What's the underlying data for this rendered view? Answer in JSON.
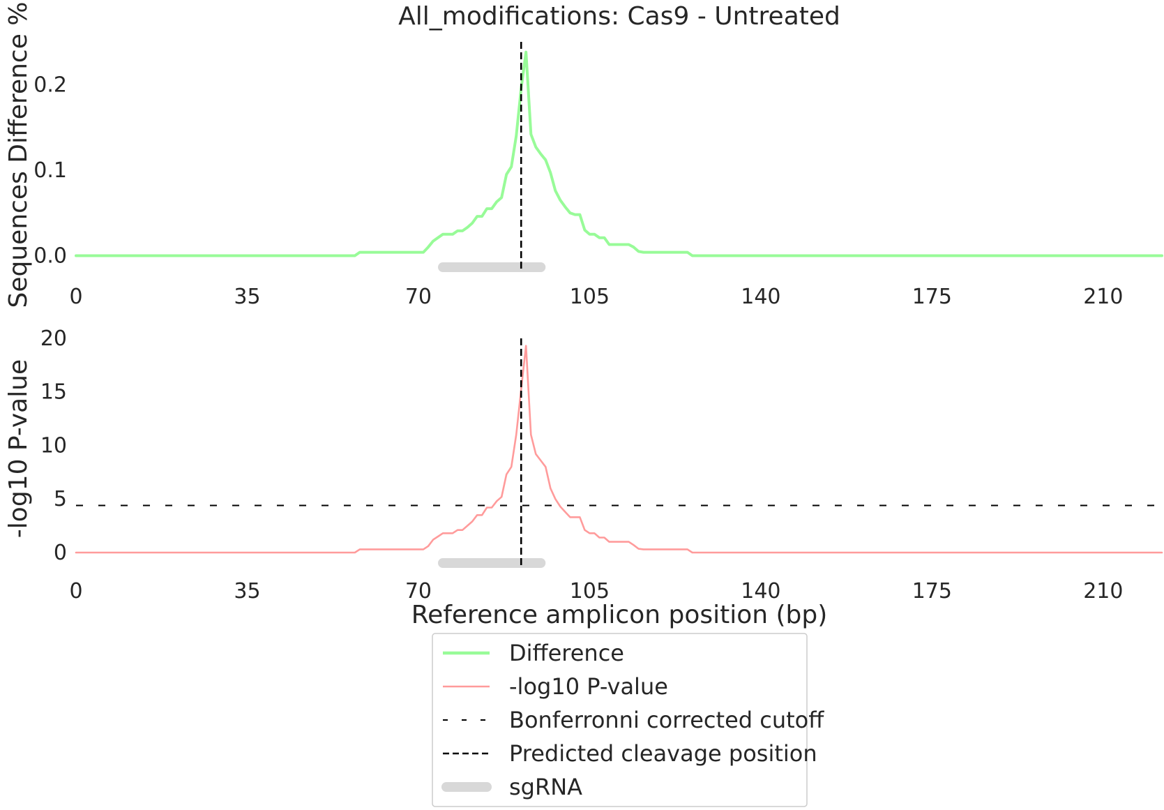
{
  "chart_data": [
    {
      "type": "line",
      "title": "All_modifications: Cas9 - Untreated",
      "ylabel": "Sequences Difference %",
      "xlabel": "",
      "xlim": [
        0,
        222
      ],
      "ylim": [
        -0.02,
        0.25
      ],
      "xticks": [
        0,
        35,
        70,
        105,
        140,
        175,
        210
      ],
      "xtick_labels": [
        "0",
        "35",
        "70",
        "105",
        "140",
        "175",
        "210"
      ],
      "yticks": [
        0.0,
        0.1,
        0.2
      ],
      "ytick_labels": [
        "0.0",
        "0.1",
        "0.2"
      ],
      "grid": false,
      "series": [
        {
          "name": "Difference",
          "color": "#98fb98",
          "x": [
            0,
            57,
            58,
            71,
            72,
            73,
            74,
            75,
            76,
            77,
            78,
            79,
            80,
            81,
            82,
            83,
            84,
            85,
            86,
            87,
            88,
            89,
            90,
            91,
            92,
            93,
            94,
            95,
            96,
            97,
            98,
            99,
            100,
            101,
            102,
            103,
            104,
            105,
            106,
            107,
            108,
            109,
            110,
            111,
            112,
            113,
            114,
            115,
            116,
            125,
            126,
            222
          ],
          "y": [
            0,
            0,
            0.004,
            0.004,
            0.01,
            0.017,
            0.021,
            0.025,
            0.025,
            0.025,
            0.029,
            0.029,
            0.033,
            0.038,
            0.046,
            0.046,
            0.055,
            0.055,
            0.063,
            0.068,
            0.095,
            0.104,
            0.14,
            0.195,
            0.238,
            0.142,
            0.127,
            0.119,
            0.112,
            0.097,
            0.076,
            0.065,
            0.057,
            0.05,
            0.048,
            0.048,
            0.03,
            0.025,
            0.025,
            0.021,
            0.021,
            0.013,
            0.013,
            0.013,
            0.013,
            0.013,
            0.01,
            0.005,
            0.004,
            0.004,
            0.0,
            0.0
          ]
        }
      ],
      "sgRNA": {
        "name": "sgRNA",
        "start": 75,
        "end": 95,
        "color": "#d8d8d8"
      },
      "cleavage_position": 91
    },
    {
      "type": "line",
      "title": "",
      "ylabel": "-log10 P-value",
      "xlabel": "Reference amplicon position (bp)",
      "xlim": [
        0,
        222
      ],
      "ylim": [
        -1.5,
        20.0
      ],
      "xticks": [
        0,
        35,
        70,
        105,
        140,
        175,
        210
      ],
      "xtick_labels": [
        "0",
        "35",
        "70",
        "105",
        "140",
        "175",
        "210"
      ],
      "yticks": [
        0,
        5,
        10,
        15,
        20
      ],
      "ytick_labels": [
        "0",
        "5",
        "10",
        "15",
        "20"
      ],
      "grid": false,
      "series": [
        {
          "name": "-log10 P-value",
          "color": "#ff9b9b",
          "x": [
            0,
            57,
            58,
            71,
            72,
            73,
            74,
            75,
            76,
            77,
            78,
            79,
            80,
            81,
            82,
            83,
            84,
            85,
            86,
            87,
            88,
            89,
            90,
            91,
            92,
            93,
            94,
            95,
            96,
            97,
            98,
            99,
            100,
            101,
            102,
            103,
            104,
            105,
            106,
            107,
            108,
            109,
            110,
            111,
            112,
            113,
            114,
            115,
            116,
            125,
            126,
            222
          ],
          "y": [
            0,
            0,
            0.3,
            0.3,
            0.6,
            1.2,
            1.5,
            1.8,
            1.8,
            1.8,
            2.1,
            2.1,
            2.5,
            2.9,
            3.5,
            3.5,
            4.2,
            4.2,
            4.8,
            5.2,
            7.3,
            8.0,
            11.0,
            15.2,
            19.3,
            11.0,
            9.2,
            8.6,
            8.0,
            6.0,
            5.0,
            4.3,
            3.8,
            3.3,
            3.3,
            3.3,
            2.1,
            1.8,
            1.8,
            1.4,
            1.4,
            1.0,
            1.0,
            1.0,
            1.0,
            1.0,
            0.7,
            0.35,
            0.3,
            0.3,
            0.0,
            0.0
          ]
        }
      ],
      "bonferroni_cutoff": 4.4,
      "sgRNA": {
        "name": "sgRNA",
        "start": 75,
        "end": 95,
        "color": "#d8d8d8"
      },
      "cleavage_position": 91
    }
  ],
  "legend": {
    "placement": "bottom-center",
    "entries": [
      {
        "label": "Difference",
        "style": "solid-thick",
        "color": "#98fb98"
      },
      {
        "label": "-log10 P-value",
        "style": "solid-thin",
        "color": "#ff9b9b"
      },
      {
        "label": "Bonferronni corrected cutoff",
        "style": "dashed-sparse",
        "color": "#000000"
      },
      {
        "label": "Predicted cleavage position",
        "style": "dashed",
        "color": "#000000"
      },
      {
        "label": "sgRNA",
        "style": "thick-bar",
        "color": "#d8d8d8"
      }
    ]
  }
}
